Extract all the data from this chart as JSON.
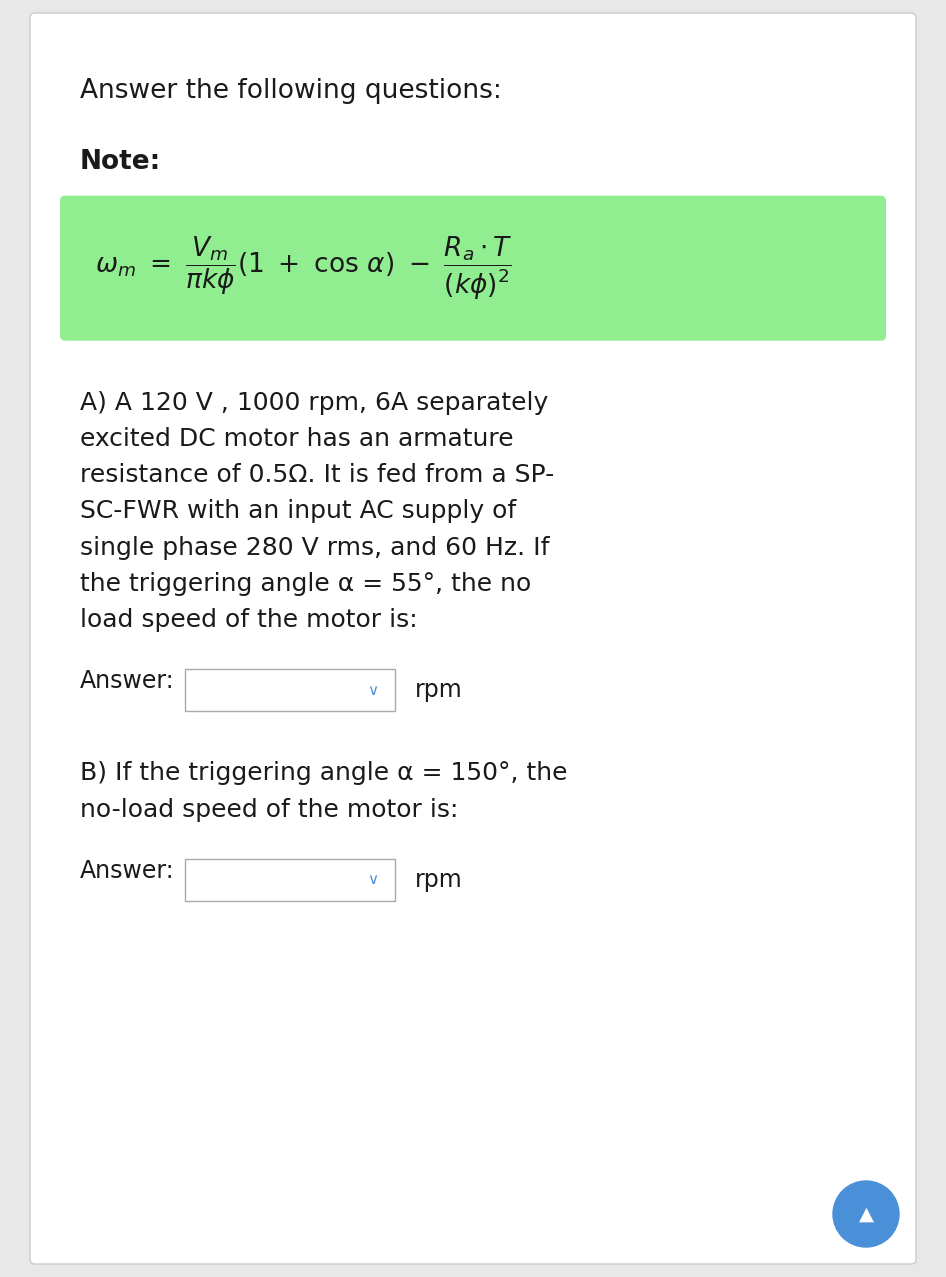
{
  "bg_color": "#e8e8e8",
  "page_bg": "#ffffff",
  "title": "Answer the following questions:",
  "note_label": "Note:",
  "formula_bg": "#90EE90",
  "part_a_lines": [
    "A) A 120 V , 1000 rpm, 6A separately",
    "excited DC motor has an armature",
    "resistance of 0.5Ω. It is fed from a SP-",
    "SC-FWR with an input AC supply of",
    "single phase 280 V rms, and 60 Hz. If",
    "the triggering angle α = 55°, the no",
    "load speed of the motor is:"
  ],
  "answer_label": "Answer:",
  "rpm_label": "rpm",
  "part_b_lines": [
    "B) If the triggering angle α = 150°, the",
    "no-load speed of the motor is:"
  ],
  "chevron_color": "#4a90d9",
  "text_color": "#1a1a1a",
  "font_size_title": 19,
  "font_size_note": 19,
  "font_size_body": 18,
  "font_size_answer": 17,
  "font_size_formula": 19
}
